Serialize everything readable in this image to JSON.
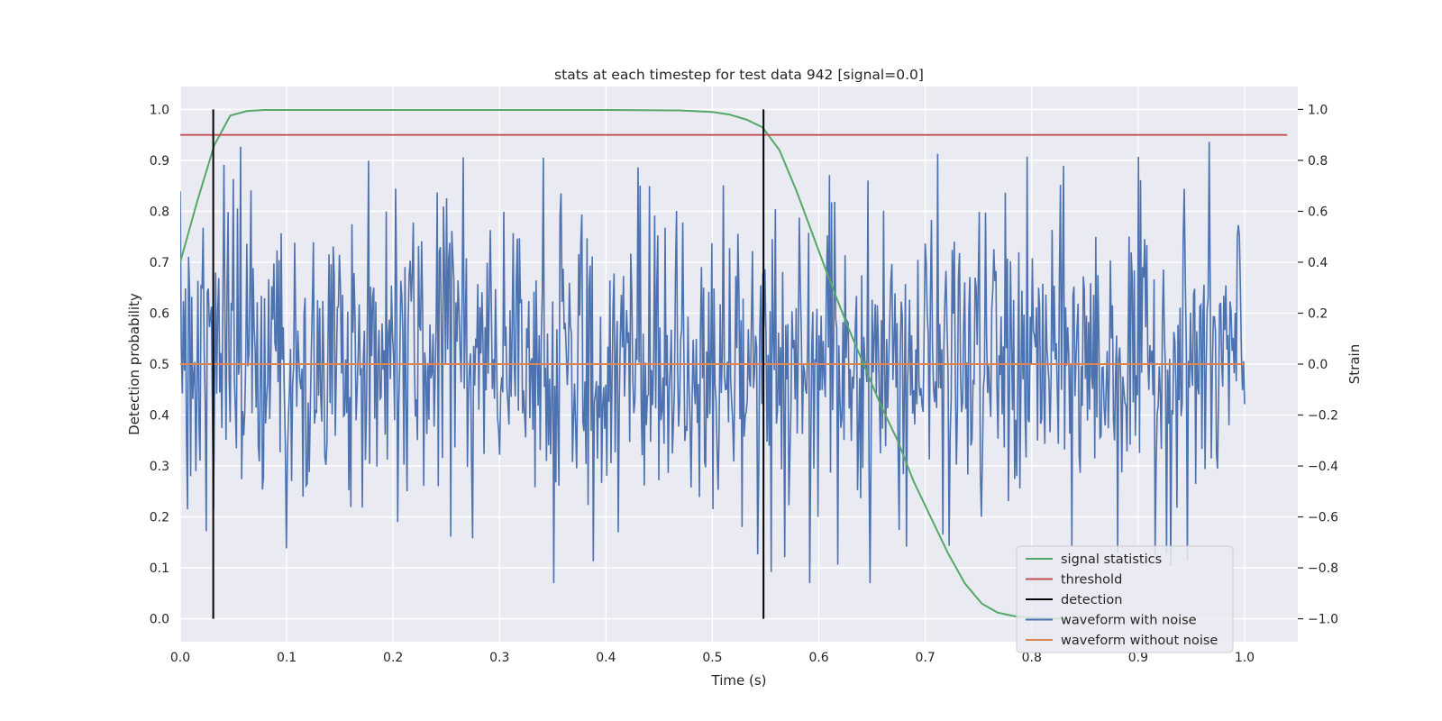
{
  "chart_data": {
    "type": "line",
    "title": "stats at each timestep for test data 942 [signal=0.0]",
    "xlabel": "Time (s)",
    "ylabel_left": "Detection probability",
    "ylabel_right": "Strain",
    "xlim": [
      0.0,
      1.05
    ],
    "ylim_left": [
      -0.045,
      1.045
    ],
    "ylim_right": [
      -1.09,
      1.09
    ],
    "x_ticks": [
      "0.0",
      "0.1",
      "0.2",
      "0.3",
      "0.4",
      "0.5",
      "0.6",
      "0.7",
      "0.8",
      "0.9",
      "1.0"
    ],
    "y_ticks_left": [
      "0.0",
      "0.1",
      "0.2",
      "0.3",
      "0.4",
      "0.5",
      "0.6",
      "0.7",
      "0.8",
      "0.9",
      "1.0"
    ],
    "y_ticks_right": [
      "−1.0",
      "−0.8",
      "−0.6",
      "−0.4",
      "−0.2",
      "0.0",
      "0.2",
      "0.4",
      "0.6",
      "0.8",
      "1.0"
    ],
    "grid": true,
    "legend_position": "lower-right",
    "colors": {
      "signal_statistics": "#55a868",
      "threshold": "#c44e52",
      "detection": "#000000",
      "waveform_with_noise": "#4c72b0",
      "waveform_without_noise": "#dd8452",
      "plot_background": "#eaeaf2",
      "grid": "#ffffff"
    },
    "series": [
      {
        "name": "signal statistics",
        "axis": "left",
        "x": [
          0.0,
          0.016,
          0.032,
          0.047,
          0.063,
          0.079,
          0.1,
          0.2,
          0.3,
          0.4,
          0.47,
          0.5,
          0.516,
          0.532,
          0.547,
          0.563,
          0.579,
          0.595,
          0.611,
          0.626,
          0.642,
          0.658,
          0.674,
          0.689,
          0.705,
          0.721,
          0.737,
          0.753,
          0.768,
          0.784,
          0.8,
          0.816,
          0.832
        ],
        "y": [
          0.7,
          0.82,
          0.93,
          0.988,
          0.997,
          0.999,
          0.999,
          0.999,
          0.999,
          0.999,
          0.998,
          0.995,
          0.99,
          0.98,
          0.965,
          0.92,
          0.84,
          0.75,
          0.66,
          0.58,
          0.5,
          0.42,
          0.35,
          0.27,
          0.2,
          0.13,
          0.07,
          0.03,
          0.012,
          0.005,
          0.002,
          0.001,
          0.0
        ]
      },
      {
        "name": "threshold",
        "axis": "left",
        "x": [
          0.0,
          1.04
        ],
        "y": [
          0.95,
          0.95
        ]
      },
      {
        "name": "detection",
        "axis": "left",
        "x_positions": [
          0.031,
          0.548
        ],
        "y": [
          0.0,
          1.0
        ]
      },
      {
        "name": "waveform with noise",
        "axis": "right",
        "x_range": [
          0.0,
          1.0
        ],
        "num_points": 1024,
        "y_range": [
          -0.86,
          1.0
        ]
      },
      {
        "name": "waveform without noise",
        "axis": "right",
        "x": [
          0.0,
          1.0
        ],
        "y": [
          0.0,
          0.0
        ]
      }
    ]
  }
}
